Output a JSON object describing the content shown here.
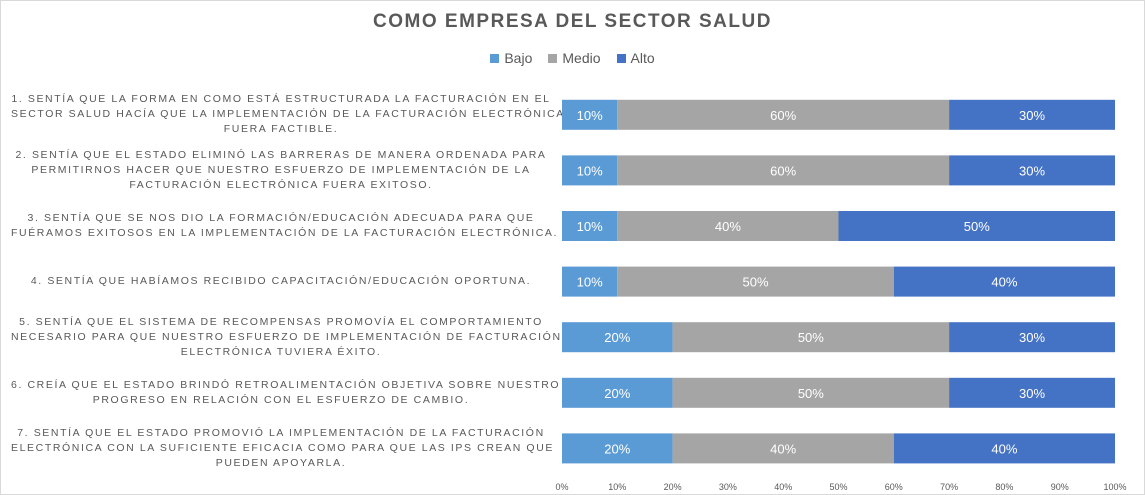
{
  "chart_data": {
    "type": "bar",
    "orientation": "horizontal",
    "stacked": "percent",
    "title": "COMO EMPRESA DEL SECTOR SALUD",
    "legend_position": "top",
    "categories": [
      [
        "1. SENTÍA QUE LA FORMA EN COMO ESTÁ ESTRUCTURADA LA FACTURACIÓN EN EL",
        "SECTOR SALUD HACÍA QUE LA IMPLEMENTACIÓN DE LA FACTURACIÓN ELECTRÓNICA",
        "FUERA FACTIBLE."
      ],
      [
        "2. SENTÍA QUE EL ESTADO ELIMINÓ LAS BARRERAS DE MANERA ORDENADA PARA",
        "PERMITIRNOS HACER QUE NUESTRO ESFUERZO DE IMPLEMENTACIÓN DE LA",
        "FACTURACIÓN ELECTRÓNICA FUERA EXITOSO."
      ],
      [
        "3. SENTÍA QUE SE NOS DIO LA FORMACIÓN/EDUCACIÓN ADECUADA PARA QUE",
        "FUÉRAMOS EXITOSOS EN LA IMPLEMENTACIÓN DE LA FACTURACIÓN ELECTRÓNICA."
      ],
      [
        "4. SENTÍA QUE HABÍAMOS RECIBIDO CAPACITACIÓN/EDUCACIÓN OPORTUNA."
      ],
      [
        "5. SENTÍA QUE EL SISTEMA DE RECOMPENSAS PROMOVÍA EL COMPORTAMIENTO",
        "NECESARIO PARA QUE NUESTRO ESFUERZO DE IMPLEMENTACIÓN DE FACTURACIÓN",
        "ELECTRÓNICA TUVIERA ÉXITO."
      ],
      [
        "6. CREÍA QUE EL ESTADO BRINDÓ RETROALIMENTACIÓN OBJETIVA SOBRE NUESTRO",
        "PROGRESO EN RELACIÓN CON EL ESFUERZO DE CAMBIO."
      ],
      [
        "7. SENTÍA QUE EL ESTADO PROMOVIÓ LA IMPLEMENTACIÓN DE LA FACTURACIÓN",
        "ELECTRÓNICA CON LA SUFICIENTE EFICACIA COMO PARA QUE LAS IPS CREAN QUE",
        "PUEDEN APOYARLA."
      ]
    ],
    "series": [
      {
        "name": "Bajo",
        "color": "#5B9BD5",
        "values": [
          10,
          10,
          10,
          10,
          20,
          20,
          20
        ]
      },
      {
        "name": "Medio",
        "color": "#A5A5A5",
        "values": [
          60,
          60,
          40,
          50,
          50,
          50,
          40
        ]
      },
      {
        "name": "Alto",
        "color": "#4472C4",
        "values": [
          30,
          30,
          50,
          40,
          30,
          30,
          40
        ]
      }
    ],
    "data_labels": [
      [
        "10%",
        "60%",
        "30%"
      ],
      [
        "10%",
        "60%",
        "30%"
      ],
      [
        "10%",
        "40%",
        "50%"
      ],
      [
        "10%",
        "50%",
        "40%"
      ],
      [
        "20%",
        "50%",
        "30%"
      ],
      [
        "20%",
        "50%",
        "30%"
      ],
      [
        "20%",
        "40%",
        "40%"
      ]
    ],
    "xlim": [
      0,
      100
    ],
    "xticks": [
      "0%",
      "10%",
      "20%",
      "30%",
      "40%",
      "50%",
      "60%",
      "70%",
      "80%",
      "90%",
      "100%"
    ],
    "grid": false
  }
}
